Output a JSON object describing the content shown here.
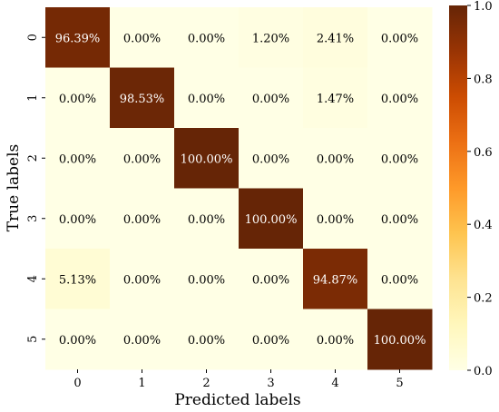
{
  "chart_data": {
    "type": "heatmap",
    "title": "",
    "xlabel": "Predicted labels",
    "ylabel": "True labels",
    "x_categories": [
      "0",
      "1",
      "2",
      "3",
      "4",
      "5"
    ],
    "y_categories": [
      "0",
      "1",
      "2",
      "3",
      "4",
      "5"
    ],
    "values": [
      [
        0.9639,
        0.0,
        0.0,
        0.012,
        0.0241,
        0.0
      ],
      [
        0.0,
        0.9853,
        0.0,
        0.0,
        0.0147,
        0.0
      ],
      [
        0.0,
        0.0,
        1.0,
        0.0,
        0.0,
        0.0
      ],
      [
        0.0,
        0.0,
        0.0,
        1.0,
        0.0,
        0.0
      ],
      [
        0.0513,
        0.0,
        0.0,
        0.0,
        0.9487,
        0.0
      ],
      [
        0.0,
        0.0,
        0.0,
        0.0,
        0.0,
        1.0
      ]
    ],
    "cell_labels": [
      [
        "96.39%",
        "0.00%",
        "0.00%",
        "1.20%",
        "2.41%",
        "0.00%"
      ],
      [
        "0.00%",
        "98.53%",
        "0.00%",
        "0.00%",
        "1.47%",
        "0.00%"
      ],
      [
        "0.00%",
        "0.00%",
        "100.00%",
        "0.00%",
        "0.00%",
        "0.00%"
      ],
      [
        "0.00%",
        "0.00%",
        "0.00%",
        "100.00%",
        "0.00%",
        "0.00%"
      ],
      [
        "5.13%",
        "0.00%",
        "0.00%",
        "0.00%",
        "94.87%",
        "0.00%"
      ],
      [
        "0.00%",
        "0.00%",
        "0.00%",
        "0.00%",
        "0.00%",
        "100.00%"
      ]
    ],
    "colorbar": {
      "range": [
        0.0,
        1.0
      ],
      "ticks": [
        "0.0",
        "0.2",
        "0.4",
        "0.6",
        "0.8",
        "1.0"
      ],
      "colormap": "YlOrBr",
      "colors": [
        "#ffffe5",
        "#fff7bc",
        "#fee391",
        "#fec44f",
        "#fe9929",
        "#ec7014",
        "#cc4c02",
        "#993404",
        "#662506"
      ]
    }
  }
}
